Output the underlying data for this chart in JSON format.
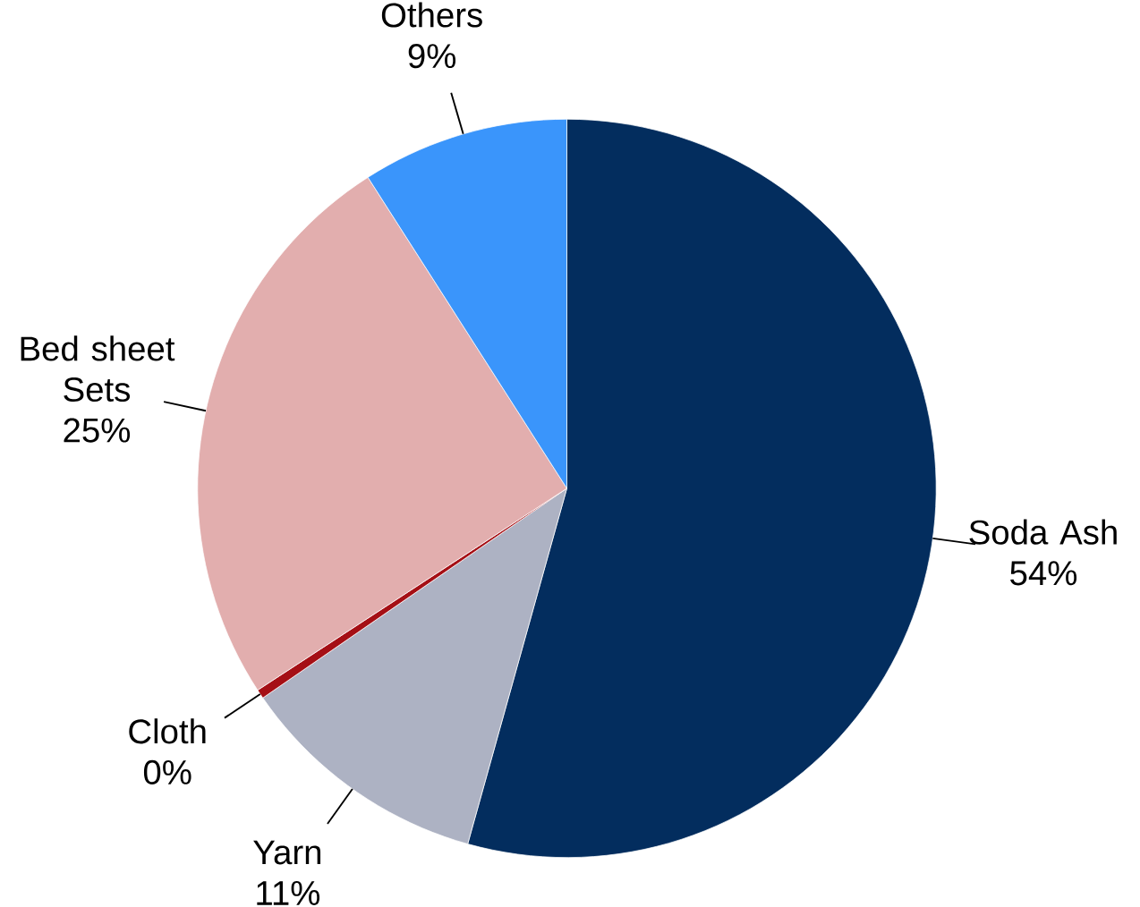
{
  "chart_data": {
    "type": "pie",
    "categories": [
      "Soda Ash",
      "Yarn",
      "Cloth",
      "Bed sheet Sets",
      "Others"
    ],
    "values": [
      54,
      11,
      0.4,
      25,
      9
    ],
    "value_labels": [
      "54%",
      "11%",
      "0%",
      "25%",
      "9%"
    ],
    "colors": [
      "#032d5e",
      "#adb2c3",
      "#a50f15",
      "#e2aeae",
      "#3a95fb"
    ],
    "data_labels": true
  }
}
